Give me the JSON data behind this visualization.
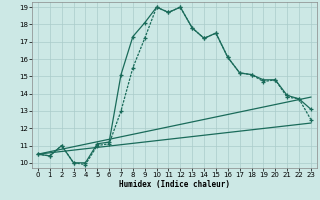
{
  "xlabel": "Humidex (Indice chaleur)",
  "background_color": "#cce8e5",
  "grid_color": "#aaccca",
  "line_color": "#1a6b5a",
  "xlim": [
    -0.5,
    23.5
  ],
  "ylim": [
    9.7,
    19.3
  ],
  "xticks": [
    0,
    1,
    2,
    3,
    4,
    5,
    6,
    7,
    8,
    9,
    10,
    11,
    12,
    13,
    14,
    15,
    16,
    17,
    18,
    19,
    20,
    21,
    22,
    23
  ],
  "yticks": [
    10,
    11,
    12,
    13,
    14,
    15,
    16,
    17,
    18,
    19
  ],
  "curve1_x": [
    0,
    1,
    2,
    3,
    4,
    5,
    6,
    7,
    8,
    9,
    10,
    11,
    12,
    13,
    14,
    15,
    16,
    17,
    18,
    19,
    20,
    21,
    22,
    23
  ],
  "curve1_y": [
    10.5,
    10.4,
    11.0,
    10.0,
    10.0,
    11.1,
    11.2,
    15.1,
    17.3,
    18.1,
    19.0,
    18.7,
    19.0,
    17.8,
    17.2,
    17.5,
    16.1,
    15.2,
    15.1,
    14.8,
    14.8,
    13.9,
    13.7,
    13.1
  ],
  "curve2_x": [
    0,
    1,
    2,
    3,
    4,
    5,
    6,
    7,
    8,
    9,
    10,
    11,
    12,
    13,
    14,
    15,
    16,
    17,
    18,
    19,
    20,
    21,
    22,
    23
  ],
  "curve2_y": [
    10.5,
    10.4,
    11.0,
    10.0,
    9.9,
    11.0,
    11.1,
    13.0,
    15.5,
    17.2,
    19.0,
    18.7,
    19.0,
    17.8,
    17.2,
    17.5,
    16.1,
    15.2,
    15.1,
    14.7,
    14.8,
    13.8,
    13.7,
    12.5
  ],
  "line3_x": [
    0,
    23
  ],
  "line3_y": [
    10.5,
    13.8
  ],
  "line4_x": [
    0,
    23
  ],
  "line4_y": [
    10.5,
    12.3
  ]
}
